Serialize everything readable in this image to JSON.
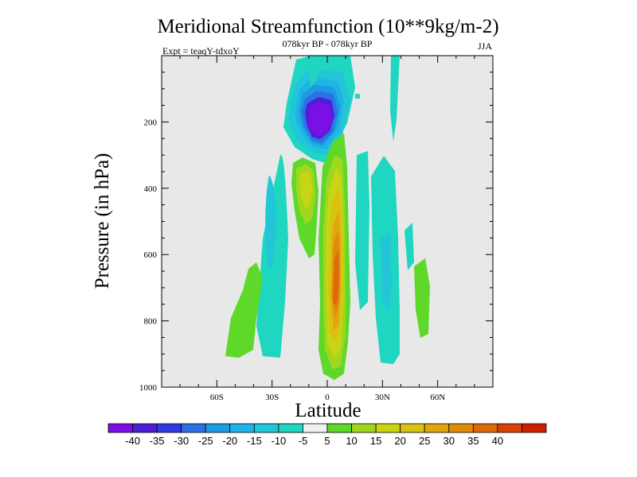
{
  "chart_data": {
    "type": "contour",
    "title": "Meridional Streamfunction (10**9kg/m-2)",
    "subtitle_center": "078kyr BP - 078kyr BP",
    "subtitle_left": "Expt = teaqY-tdxoY",
    "subtitle_right": "JJA",
    "xlabel": "Latitude",
    "ylabel": "Pressure (in hPa)",
    "xlim": [
      -90,
      90
    ],
    "ylim": [
      1000,
      0
    ],
    "x_ticks": [
      {
        "value": -60,
        "label": "60S"
      },
      {
        "value": -30,
        "label": "30S"
      },
      {
        "value": 0,
        "label": "0"
      },
      {
        "value": 30,
        "label": "30N"
      },
      {
        "value": 60,
        "label": "60N"
      }
    ],
    "y_ticks": [
      {
        "value": 200,
        "label": "200"
      },
      {
        "value": 400,
        "label": "400"
      },
      {
        "value": 600,
        "label": "600"
      },
      {
        "value": 800,
        "label": "800"
      },
      {
        "value": 1000,
        "label": "1000"
      }
    ],
    "colorbar": {
      "colors": [
        "#7a0fe6",
        "#4b1fd2",
        "#2d3de0",
        "#2f6fe6",
        "#1b9be0",
        "#20b4e6",
        "#22c6d8",
        "#1fd6c0",
        "#f0f0f0",
        "#5ed92a",
        "#9fd71e",
        "#c8d416",
        "#d9c210",
        "#e0a60f",
        "#e08a0c",
        "#dd6a08",
        "#d54405",
        "#cc2200"
      ],
      "labels": [
        "-40",
        "-35",
        "-30",
        "-25",
        "-20",
        "-15",
        "-10",
        "-5",
        "5",
        "10",
        "15",
        "20",
        "25",
        "30",
        "35",
        "40"
      ]
    },
    "features": [
      {
        "name": "negative-cell-upper",
        "lat": -7,
        "p": 190,
        "value": -40
      },
      {
        "name": "positive-cell-equatorial",
        "lat": 5,
        "p": 700,
        "value": 35
      },
      {
        "name": "positive-cell-south",
        "lat": -12,
        "p": 400,
        "value": 20
      },
      {
        "name": "weak-cell-south",
        "lat": -45,
        "p": 850,
        "value": 10
      },
      {
        "name": "weak-band-north",
        "lat": 32,
        "p": 550,
        "value": -10
      },
      {
        "name": "weak-band-far-north",
        "lat": 55,
        "p": 700,
        "value": 10
      }
    ]
  }
}
